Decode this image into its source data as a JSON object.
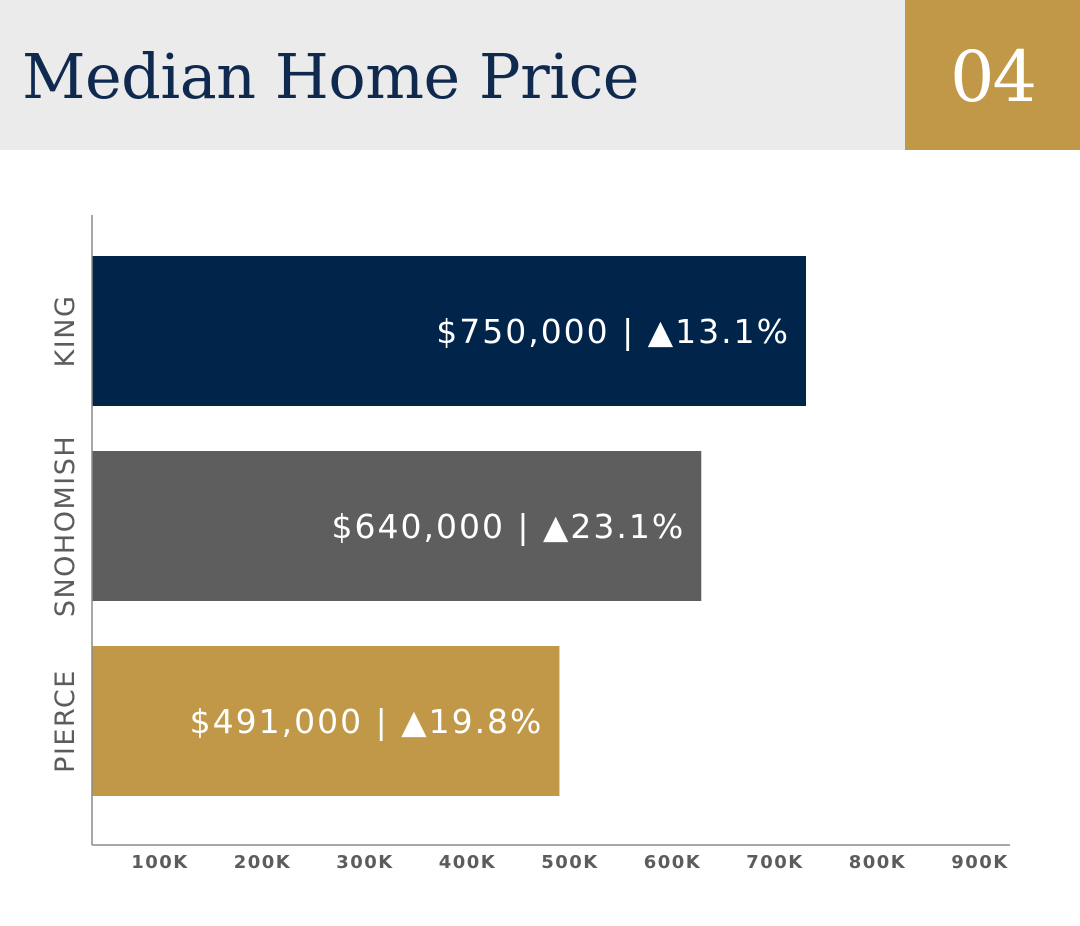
{
  "header": {
    "title": "Median Home Price",
    "badge": "04"
  },
  "colors": {
    "header_bg": "#ebebeb",
    "title": "#0f2a4e",
    "badge_bg": "#c09847",
    "axis": "#8a8a8a"
  },
  "chart_data": {
    "type": "bar",
    "orientation": "horizontal",
    "title": "Median Home Price",
    "categories": [
      "KING",
      "SNOHOMISH",
      "PIERCE"
    ],
    "values": [
      750000,
      640000,
      491000
    ],
    "data_labels": [
      "$750,000 | ▲13.1%",
      "$640,000 | ▲23.1%",
      "$491,000 | ▲19.8%"
    ],
    "bar_colors": [
      "#01244a",
      "#5e5e5e",
      "#c09847"
    ],
    "xticks": [
      100000,
      200000,
      300000,
      400000,
      500000,
      600000,
      700000,
      800000,
      900000
    ],
    "xtick_labels": [
      "100K",
      "200K",
      "300K",
      "400K",
      "500K",
      "600K",
      "700K",
      "800K",
      "900K"
    ],
    "xlim": [
      0,
      900000
    ],
    "xlabel": "",
    "ylabel": "",
    "grid": false,
    "legend": "none"
  }
}
